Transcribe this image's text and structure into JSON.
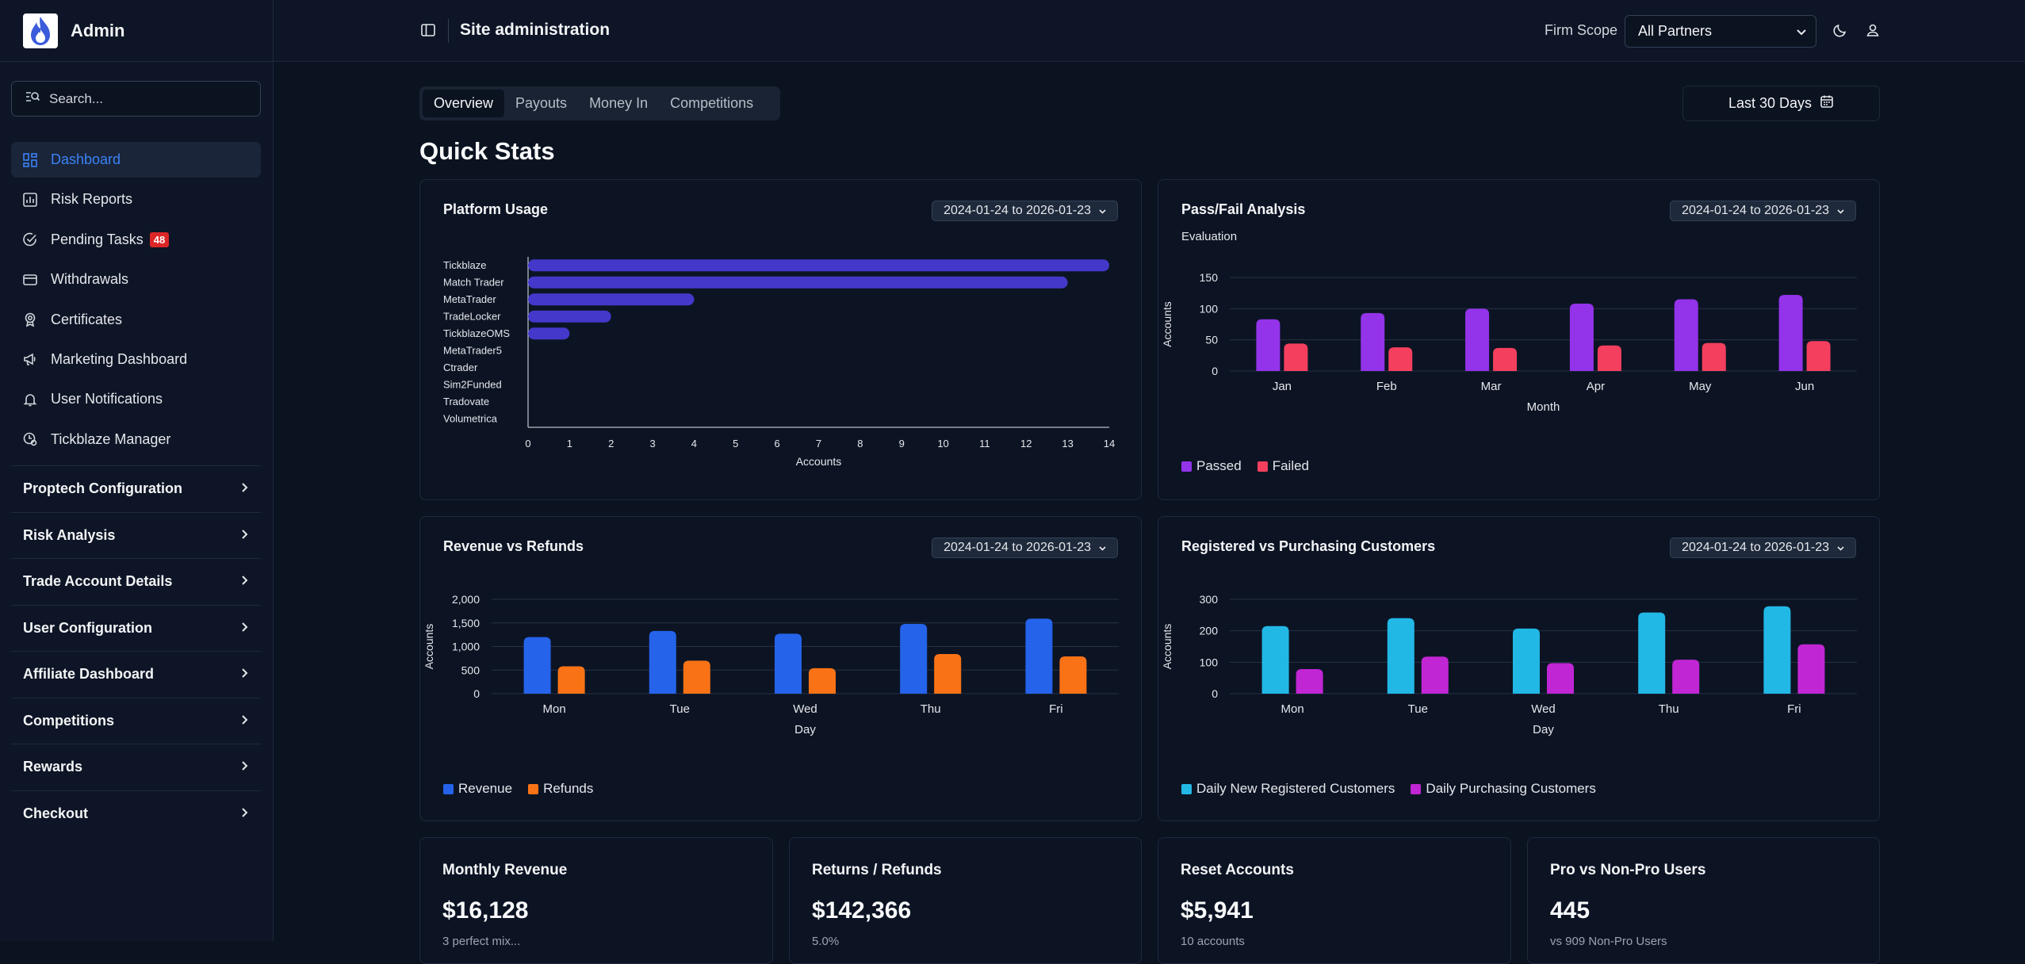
{
  "app": {
    "name": "Admin"
  },
  "search": {
    "placeholder": "Search..."
  },
  "nav": {
    "items": [
      {
        "label": "Dashboard",
        "icon": "dashboard-icon"
      },
      {
        "label": "Risk Reports",
        "icon": "chart-icon"
      },
      {
        "label": "Pending Tasks",
        "icon": "check-circle-icon",
        "badge": "48"
      },
      {
        "label": "Withdrawals",
        "icon": "card-icon"
      },
      {
        "label": "Certificates",
        "icon": "award-icon"
      },
      {
        "label": "Marketing Dashboard",
        "icon": "megaphone-icon"
      },
      {
        "label": "User Notifications",
        "icon": "bell-icon"
      },
      {
        "label": "Tickblaze Manager",
        "icon": "manager-icon"
      }
    ],
    "groups": [
      "Proptech Configuration",
      "Risk Analysis",
      "Trade Account Details",
      "User Configuration",
      "Affiliate Dashboard",
      "Competitions",
      "Rewards",
      "Checkout"
    ]
  },
  "header": {
    "title": "Site administration",
    "scope_label": "Firm Scope",
    "scope_value": "All Partners"
  },
  "tabs": [
    "Overview",
    "Payouts",
    "Money In",
    "Competitions"
  ],
  "range_label": "Last 30 Days",
  "section_title": "Quick Stats",
  "colors": {
    "accent": "#3b82f6",
    "bar_indigo": "#4338ca",
    "passed": "#9333ea",
    "failed": "#f43f5e",
    "revenue": "#2563eb",
    "refunds": "#f97316",
    "registered": "#22b8e6",
    "purchasing": "#c026d3"
  },
  "cards": {
    "platform": {
      "title": "Platform Usage",
      "date": "2024-01-24 to 2026-01-23"
    },
    "passfail": {
      "title": "Pass/Fail Analysis",
      "subtitle": "Evaluation",
      "date": "2024-01-24 to 2026-01-23"
    },
    "revenue": {
      "title": "Revenue vs Refunds",
      "date": "2024-01-24 to 2026-01-23"
    },
    "customers": {
      "title": "Registered vs Purchasing Customers",
      "date": "2024-01-24 to 2026-01-23"
    }
  },
  "chart_data": [
    {
      "type": "bar",
      "orientation": "horizontal",
      "categories": [
        "Tickblaze",
        "Match Trader",
        "MetaTrader",
        "TradeLocker",
        "TickblazeOMS",
        "MetaTrader5",
        "Ctrader",
        "Sim2Funded",
        "Tradovate",
        "Volumetrica"
      ],
      "values": [
        14,
        13,
        4,
        2,
        1,
        0,
        0,
        0,
        0,
        0
      ],
      "xlabel": "Accounts",
      "xlim": [
        0,
        14
      ],
      "xticks": [
        "0",
        "1",
        "2",
        "3",
        "4",
        "5",
        "6",
        "7",
        "8",
        "9",
        "10",
        "11",
        "12",
        "13",
        "14"
      ],
      "grid": false
    },
    {
      "type": "bar",
      "categories": [
        "Jan",
        "Feb",
        "Mar",
        "Apr",
        "May",
        "Jun"
      ],
      "series": [
        {
          "name": "Passed",
          "values": [
            83,
            93,
            100,
            108,
            115,
            122
          ]
        },
        {
          "name": "Failed",
          "values": [
            44,
            38,
            37,
            41,
            45,
            48
          ]
        }
      ],
      "xlabel": "Month",
      "ylabel": "Accounts",
      "ylim": [
        0,
        150
      ],
      "yticks": [
        "0",
        "50",
        "100",
        "150"
      ],
      "legend": "bottom-left",
      "grid": true
    },
    {
      "type": "bar",
      "categories": [
        "Mon",
        "Tue",
        "Wed",
        "Thu",
        "Fri"
      ],
      "series": [
        {
          "name": "Revenue",
          "values": [
            1200,
            1330,
            1270,
            1480,
            1590
          ]
        },
        {
          "name": "Refunds",
          "values": [
            580,
            700,
            540,
            840,
            790
          ]
        }
      ],
      "xlabel": "Day",
      "ylabel": "Accounts",
      "ylim": [
        0,
        2000
      ],
      "yticks": [
        "0",
        "500",
        "1,000",
        "1,500",
        "2,000"
      ],
      "legend": "bottom-left",
      "grid": true
    },
    {
      "type": "bar",
      "categories": [
        "Mon",
        "Tue",
        "Wed",
        "Thu",
        "Fri"
      ],
      "series": [
        {
          "name": "Daily New Registered Customers",
          "values": [
            215,
            240,
            207,
            258,
            278
          ]
        },
        {
          "name": "Daily Purchasing Customers",
          "values": [
            78,
            118,
            97,
            108,
            157
          ]
        }
      ],
      "xlabel": "Day",
      "ylabel": "Accounts",
      "ylim": [
        0,
        300
      ],
      "yticks": [
        "0",
        "100",
        "200",
        "300"
      ],
      "legend": "bottom-left",
      "grid": true
    }
  ],
  "stats": [
    {
      "title": "Monthly Revenue",
      "value": "$16,128",
      "sub": "3 perfect mix..."
    },
    {
      "title": "Returns / Refunds",
      "value": "$142,366",
      "sub": "5.0%"
    },
    {
      "title": "Reset Accounts",
      "value": "$5,941",
      "sub": "10 accounts"
    },
    {
      "title": "Pro vs Non-Pro Users",
      "value": "445",
      "sub": "vs 909 Non-Pro Users"
    }
  ]
}
